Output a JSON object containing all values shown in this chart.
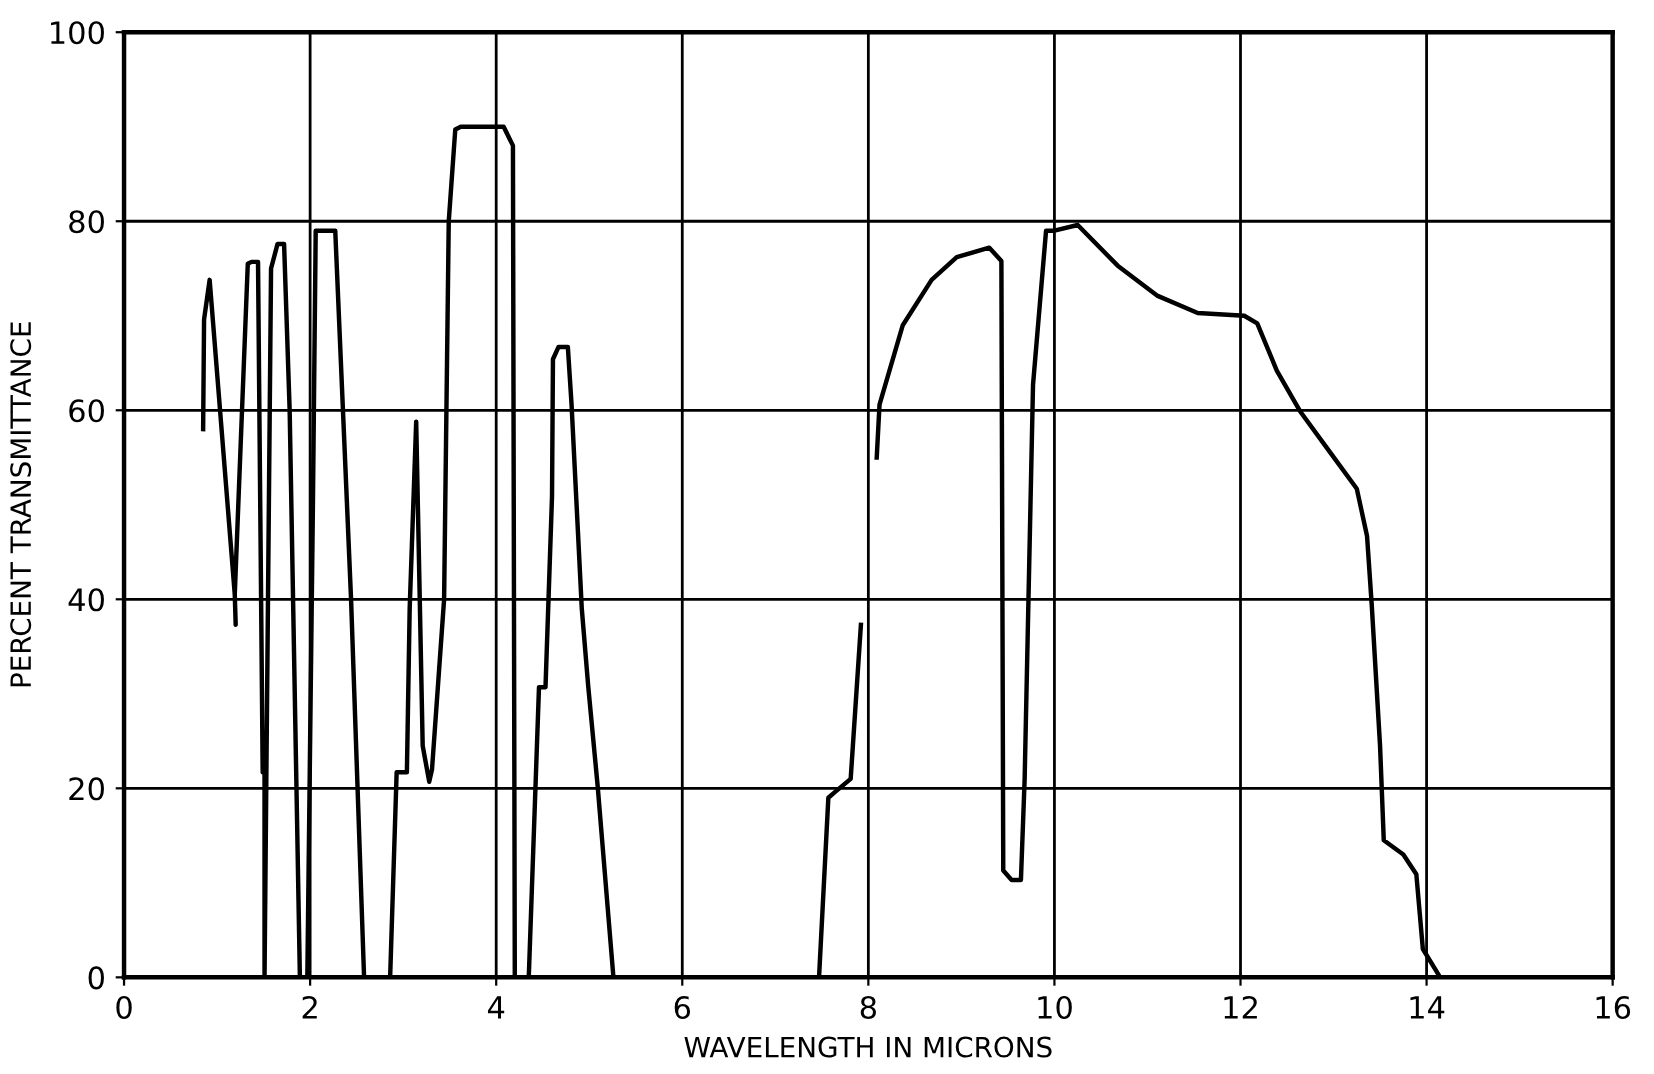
{
  "chart_data": {
    "type": "line",
    "xlabel": "WAVELENGTH IN MICRONS",
    "ylabel": "PERCENT TRANSMITTANCE",
    "xlim": [
      0,
      16
    ],
    "xticks": [
      0,
      2,
      4,
      6,
      8,
      10,
      12,
      14,
      16
    ],
    "ylim": [
      0,
      100
    ],
    "yticks": [
      0,
      20,
      40,
      60,
      80,
      100
    ],
    "grid": true,
    "marker": "none",
    "line_style": "solid",
    "series": [
      {
        "color": "#000000",
        "x": [
          0.85,
          0.86,
          0.92,
          1.19,
          1.2,
          1.19,
          1.33,
          1.37,
          1.44,
          1.49,
          1.51,
          1.51,
          1.53,
          1.58,
          1.65,
          1.72,
          1.78,
          1.89,
          1.97,
          2.03,
          2.06,
          2.27,
          2.44,
          2.58,
          2.86,
          2.93,
          3.04,
          3.07,
          3.14,
          3.21,
          3.28,
          3.31,
          3.44,
          3.49,
          3.56,
          3.62,
          4.08,
          4.18,
          4.2,
          4.35,
          4.46,
          4.53,
          4.6,
          4.61,
          4.67,
          4.77,
          4.81,
          4.92,
          4.99,
          5.09,
          5.26,
          7.47,
          7.57,
          7.64,
          7.81,
          7.92,
          7.97,
          8.09,
          8.12,
          8.37,
          8.68,
          8.95,
          9.3,
          9.43,
          9.45,
          9.54,
          9.64,
          9.68,
          9.77,
          9.91,
          10.0,
          10.25,
          10.68,
          11.11,
          11.54,
          12.04,
          12.18,
          12.39,
          12.64,
          12.93,
          13.25,
          13.36,
          13.41,
          13.5,
          13.54,
          13.75,
          13.89,
          13.96,
          14.14
        ],
        "values": [
          58,
          69.6,
          73.8,
          40.5,
          37.3,
          40.5,
          75.5,
          75.7,
          75.7,
          21.7,
          21.7,
          0,
          21.7,
          75,
          77.6,
          77.6,
          60,
          0,
          0,
          50,
          79,
          79,
          40,
          0,
          0,
          21.7,
          21.7,
          39,
          58.8,
          24.5,
          20.7,
          22,
          40,
          80,
          89.7,
          90,
          90,
          88,
          0,
          0,
          30.7,
          30.7,
          50.9,
          65.4,
          66.7,
          66.7,
          60.6,
          39,
          30.7,
          20.3,
          0,
          0,
          19,
          19.6,
          21,
          37.3,
          null,
          55,
          60.6,
          69,
          73.8,
          76.2,
          77.2,
          75.8,
          11.3,
          10.3,
          10.3,
          21,
          62.7,
          79,
          79,
          79.6,
          75.3,
          72.1,
          70.3,
          70,
          69.2,
          64.2,
          59.9,
          56,
          51.7,
          46.7,
          39.5,
          24.5,
          14.5,
          13,
          10.9,
          3,
          0.1
        ]
      }
    ]
  }
}
